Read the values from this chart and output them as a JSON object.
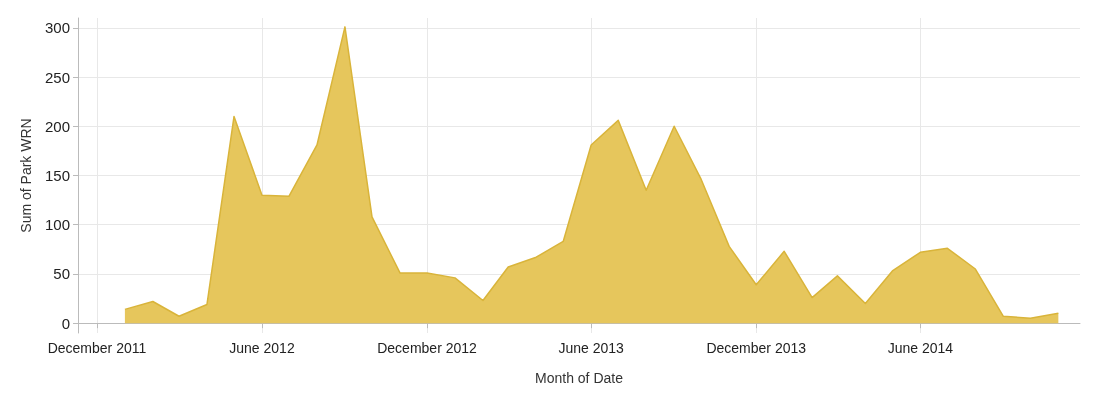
{
  "chart_data": {
    "type": "area",
    "xlabel": "Month of Date",
    "ylabel": "Sum of Park WRN",
    "x": [
      "2012-01",
      "2012-02",
      "2012-03",
      "2012-04",
      "2012-05",
      "2012-06",
      "2012-07",
      "2012-08",
      "2012-09",
      "2012-10",
      "2012-11",
      "2012-12",
      "2013-01",
      "2013-02",
      "2013-03",
      "2013-04",
      "2013-05",
      "2013-06",
      "2013-07",
      "2013-08",
      "2013-09",
      "2013-10",
      "2013-11",
      "2013-12",
      "2014-01",
      "2014-02",
      "2014-03",
      "2014-04",
      "2014-05",
      "2014-06",
      "2014-07",
      "2014-08",
      "2014-09",
      "2014-10",
      "2014-11"
    ],
    "series": [
      {
        "color": "#e6c65c",
        "values": [
          14,
          22,
          7,
          19,
          210,
          130,
          129,
          181,
          301,
          108,
          51,
          51,
          46,
          23,
          57,
          67,
          83,
          181,
          206,
          135,
          200,
          146,
          78,
          39,
          73,
          26,
          48,
          20,
          53,
          72,
          76,
          55,
          7,
          5,
          10
        ]
      }
    ],
    "xlim": [
      "2011-11-10",
      "2014-11-25"
    ],
    "xticks": [
      {
        "value": "2011-12",
        "label": "December 2011"
      },
      {
        "value": "2012-06",
        "label": "June 2012"
      },
      {
        "value": "2012-12",
        "label": "December 2012"
      },
      {
        "value": "2013-06",
        "label": "June 2013"
      },
      {
        "value": "2013-12",
        "label": "December 2013"
      },
      {
        "value": "2014-06",
        "label": "June 2014"
      }
    ],
    "ylim": [
      -10,
      310
    ],
    "yticks": [
      0,
      50,
      100,
      150,
      200,
      250,
      300
    ],
    "grid": true
  }
}
